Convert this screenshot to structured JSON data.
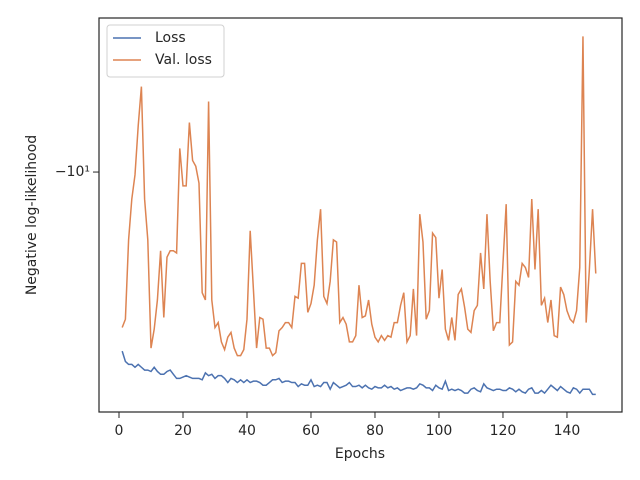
{
  "chart_data": {
    "type": "line",
    "x_label": "Epochs",
    "y_label": "Negative log-likelihood",
    "yscale": "symlog",
    "legend_loc": "upper left",
    "xlim": [
      -6.25,
      157.2
    ],
    "xticks": [
      0,
      20,
      40,
      60,
      80,
      100,
      120,
      140
    ],
    "ylim": [
      -5.81,
      -23.3
    ],
    "yticks": [
      {
        "value": -10,
        "label": "−10¹"
      }
    ],
    "x": [
      1,
      2,
      3,
      4,
      5,
      6,
      7,
      8,
      9,
      10,
      11,
      12,
      13,
      14,
      15,
      16,
      17,
      18,
      19,
      20,
      21,
      22,
      23,
      24,
      25,
      26,
      27,
      28,
      29,
      30,
      31,
      32,
      33,
      34,
      35,
      36,
      37,
      38,
      39,
      40,
      41,
      42,
      43,
      44,
      45,
      46,
      47,
      48,
      49,
      50,
      51,
      52,
      53,
      54,
      55,
      56,
      57,
      58,
      59,
      60,
      61,
      62,
      63,
      64,
      65,
      66,
      67,
      68,
      69,
      70,
      71,
      72,
      73,
      74,
      75,
      76,
      77,
      78,
      79,
      80,
      81,
      82,
      83,
      84,
      85,
      86,
      87,
      88,
      89,
      90,
      91,
      92,
      93,
      94,
      95,
      96,
      97,
      98,
      99,
      100,
      101,
      102,
      103,
      104,
      105,
      106,
      107,
      108,
      109,
      110,
      111,
      112,
      113,
      114,
      115,
      116,
      117,
      118,
      119,
      120,
      121,
      122,
      123,
      124,
      125,
      126,
      127,
      128,
      129,
      130,
      131,
      132,
      133,
      134,
      135,
      136,
      137,
      138,
      139,
      140,
      141,
      142,
      143,
      144,
      145,
      146,
      147,
      148,
      149
    ],
    "series": [
      {
        "name": "Loss",
        "color": "#4c72b0",
        "values": [
          -18.8,
          -19.5,
          -19.7,
          -19.7,
          -19.9,
          -19.7,
          -19.9,
          -20.1,
          -20.1,
          -20.2,
          -19.9,
          -20.2,
          -20.4,
          -20.4,
          -20.2,
          -20.1,
          -20.4,
          -20.7,
          -20.7,
          -20.6,
          -20.5,
          -20.6,
          -20.7,
          -20.7,
          -20.7,
          -20.8,
          -20.3,
          -20.5,
          -20.4,
          -20.7,
          -20.5,
          -20.5,
          -20.7,
          -21.0,
          -20.7,
          -20.8,
          -21.0,
          -20.8,
          -21.0,
          -20.8,
          -21.0,
          -20.9,
          -20.9,
          -21.0,
          -21.2,
          -21.2,
          -21.0,
          -20.8,
          -20.8,
          -20.7,
          -21.0,
          -20.9,
          -20.9,
          -21.0,
          -21.0,
          -21.3,
          -21.1,
          -21.2,
          -21.2,
          -20.8,
          -21.3,
          -21.2,
          -21.3,
          -21.0,
          -21.0,
          -21.5,
          -21.0,
          -21.2,
          -21.4,
          -21.3,
          -21.2,
          -21.0,
          -21.3,
          -21.3,
          -21.2,
          -21.4,
          -21.2,
          -21.4,
          -21.5,
          -21.3,
          -21.4,
          -21.4,
          -21.2,
          -21.4,
          -21.3,
          -21.5,
          -21.4,
          -21.6,
          -21.5,
          -21.4,
          -21.4,
          -21.5,
          -21.4,
          -21.1,
          -21.2,
          -21.4,
          -21.4,
          -21.6,
          -21.2,
          -21.4,
          -21.5,
          -20.9,
          -21.6,
          -21.5,
          -21.6,
          -21.5,
          -21.6,
          -21.8,
          -21.8,
          -21.5,
          -21.4,
          -21.6,
          -21.7,
          -21.1,
          -21.4,
          -21.5,
          -21.6,
          -21.5,
          -21.5,
          -21.6,
          -21.6,
          -21.4,
          -21.5,
          -21.7,
          -21.5,
          -21.7,
          -21.8,
          -21.5,
          -21.4,
          -21.8,
          -21.8,
          -21.6,
          -21.8,
          -21.5,
          -21.2,
          -21.4,
          -21.6,
          -21.3,
          -21.5,
          -21.7,
          -21.8,
          -21.4,
          -21.5,
          -21.8,
          -21.5,
          -21.5,
          -21.5,
          -21.9,
          -21.9
        ]
      },
      {
        "name": "Val. loss",
        "color": "#dd8452",
        "values": [
          -17.3,
          -16.8,
          -12.7,
          -11.0,
          -10.1,
          -8.5,
          -7.4,
          -11.0,
          -12.7,
          -18.6,
          -17.4,
          -15.7,
          -13.2,
          -16.7,
          -13.5,
          -13.2,
          -13.2,
          -13.3,
          -9.2,
          -10.5,
          -10.5,
          -8.4,
          -9.6,
          -9.8,
          -10.4,
          -15.3,
          -15.7,
          -7.8,
          -15.7,
          -17.3,
          -17.0,
          -18.2,
          -18.7,
          -17.9,
          -17.6,
          -18.6,
          -19.1,
          -19.1,
          -18.7,
          -16.8,
          -12.3,
          -15.1,
          -18.6,
          -16.7,
          -16.8,
          -18.6,
          -18.6,
          -19.1,
          -18.9,
          -17.5,
          -17.3,
          -17.0,
          -17.0,
          -17.3,
          -15.5,
          -15.6,
          -13.8,
          -13.8,
          -16.4,
          -15.9,
          -14.9,
          -12.7,
          -11.4,
          -15.5,
          -15.9,
          -14.7,
          -12.7,
          -12.8,
          -17.0,
          -16.7,
          -17.1,
          -18.2,
          -18.2,
          -17.8,
          -14.9,
          -16.7,
          -16.6,
          -15.7,
          -17.1,
          -17.9,
          -18.2,
          -17.8,
          -18.1,
          -17.8,
          -17.9,
          -17.0,
          -17.0,
          -16.0,
          -15.3,
          -18.2,
          -17.8,
          -15.1,
          -17.8,
          -11.6,
          -12.8,
          -16.8,
          -16.3,
          -12.4,
          -12.6,
          -15.6,
          -14.1,
          -17.4,
          -18.1,
          -16.7,
          -18.1,
          -15.4,
          -15.1,
          -16.1,
          -17.4,
          -17.6,
          -16.3,
          -16.0,
          -13.3,
          -15.1,
          -11.6,
          -14.7,
          -17.5,
          -17.0,
          -17.0,
          -13.8,
          -11.2,
          -18.4,
          -18.2,
          -14.7,
          -14.9,
          -13.8,
          -14.0,
          -14.5,
          -11.0,
          -14.1,
          -11.4,
          -16.0,
          -15.6,
          -17.0,
          -15.7,
          -17.8,
          -17.9,
          -15.0,
          -15.4,
          -16.3,
          -16.8,
          -17.0,
          -16.3,
          -14.0,
          -6.2,
          -17.0,
          -14.1,
          -11.4,
          -14.3
        ]
      }
    ]
  }
}
